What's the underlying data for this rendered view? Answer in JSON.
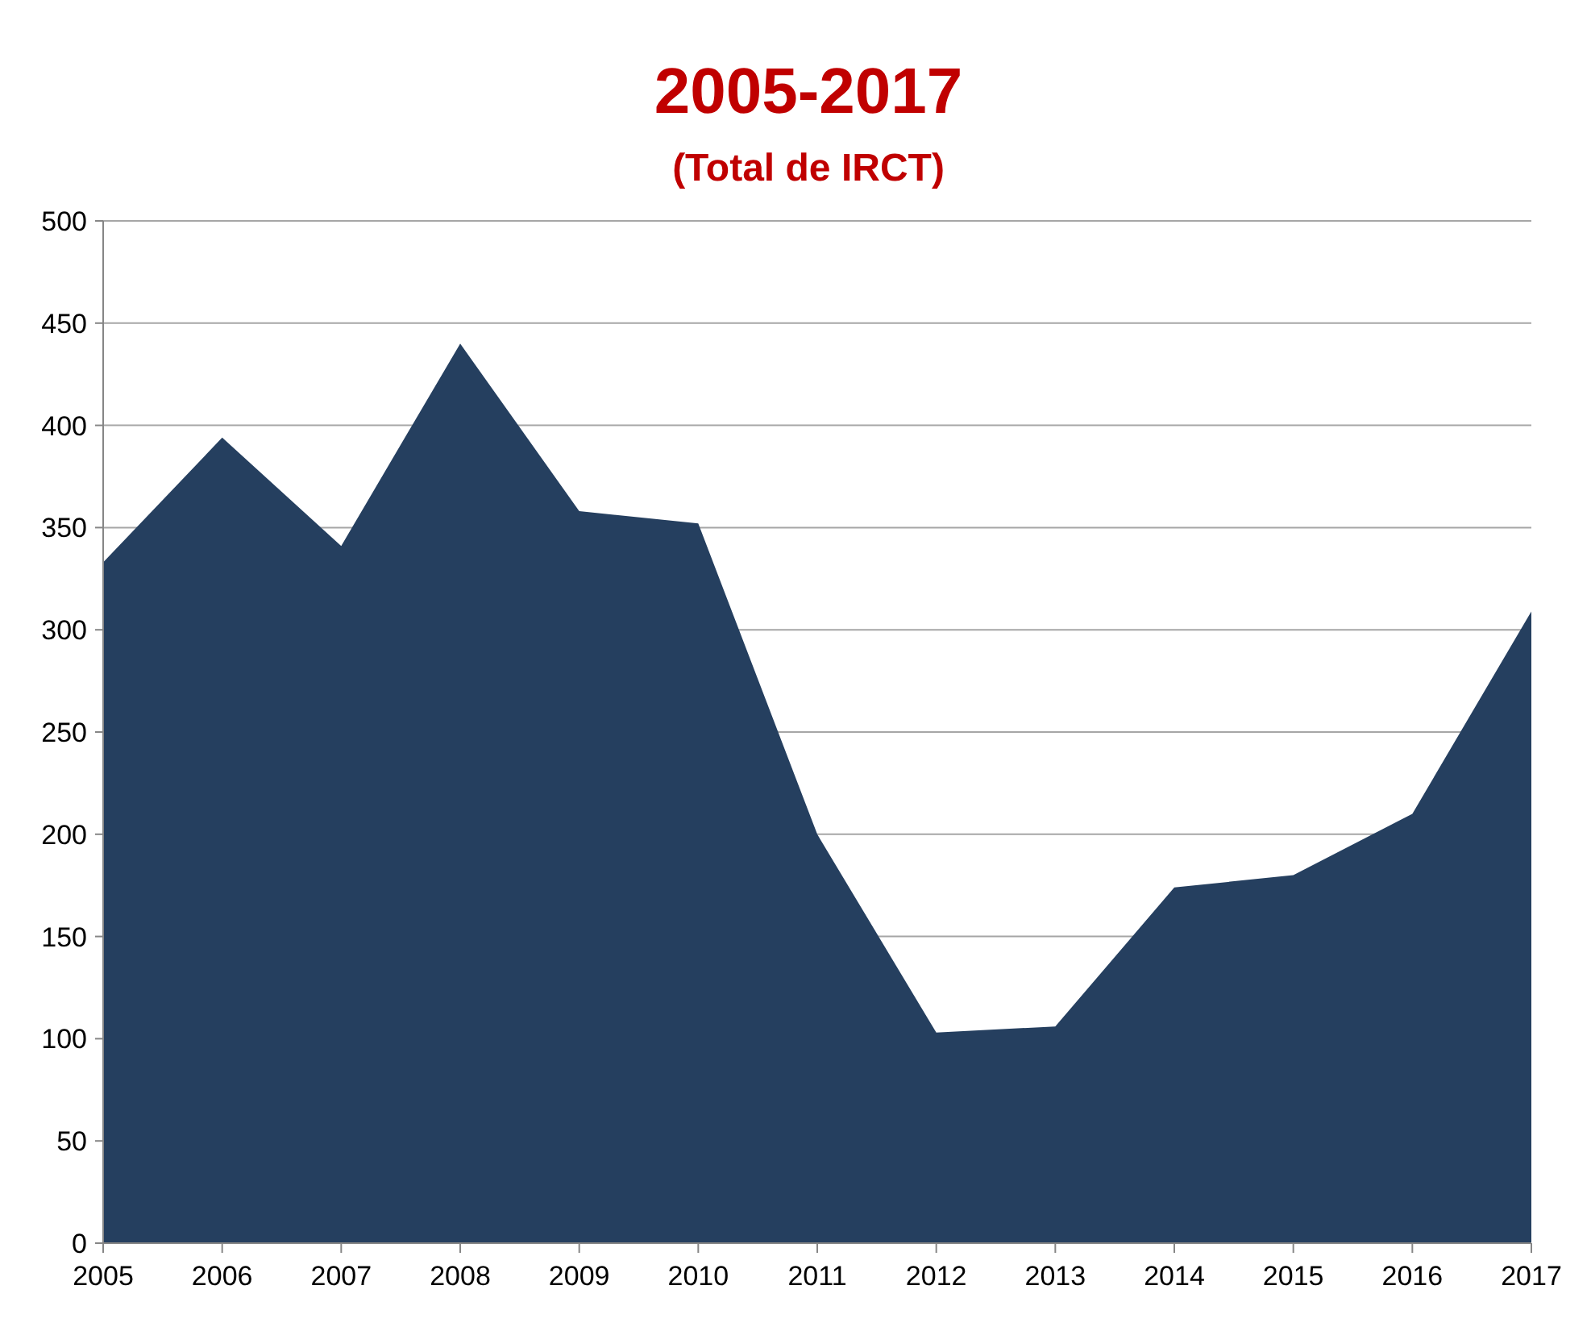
{
  "chart_data": {
    "type": "area",
    "title": "2005-2017",
    "subtitle": "(Total de IRCT)",
    "categories": [
      "2005",
      "2006",
      "2007",
      "2008",
      "2009",
      "2010",
      "2011",
      "2012",
      "2013",
      "2014",
      "2015",
      "2016",
      "2017"
    ],
    "series": [
      {
        "color": "#253f5f",
        "values": [
          333,
          394,
          341,
          440,
          358,
          352,
          200,
          103,
          106,
          174,
          180,
          210,
          309
        ]
      }
    ],
    "ylim": [
      0,
      500
    ],
    "yticks": [
      0,
      50,
      100,
      150,
      200,
      250,
      300,
      350,
      400,
      450,
      500
    ],
    "grid": "y"
  }
}
